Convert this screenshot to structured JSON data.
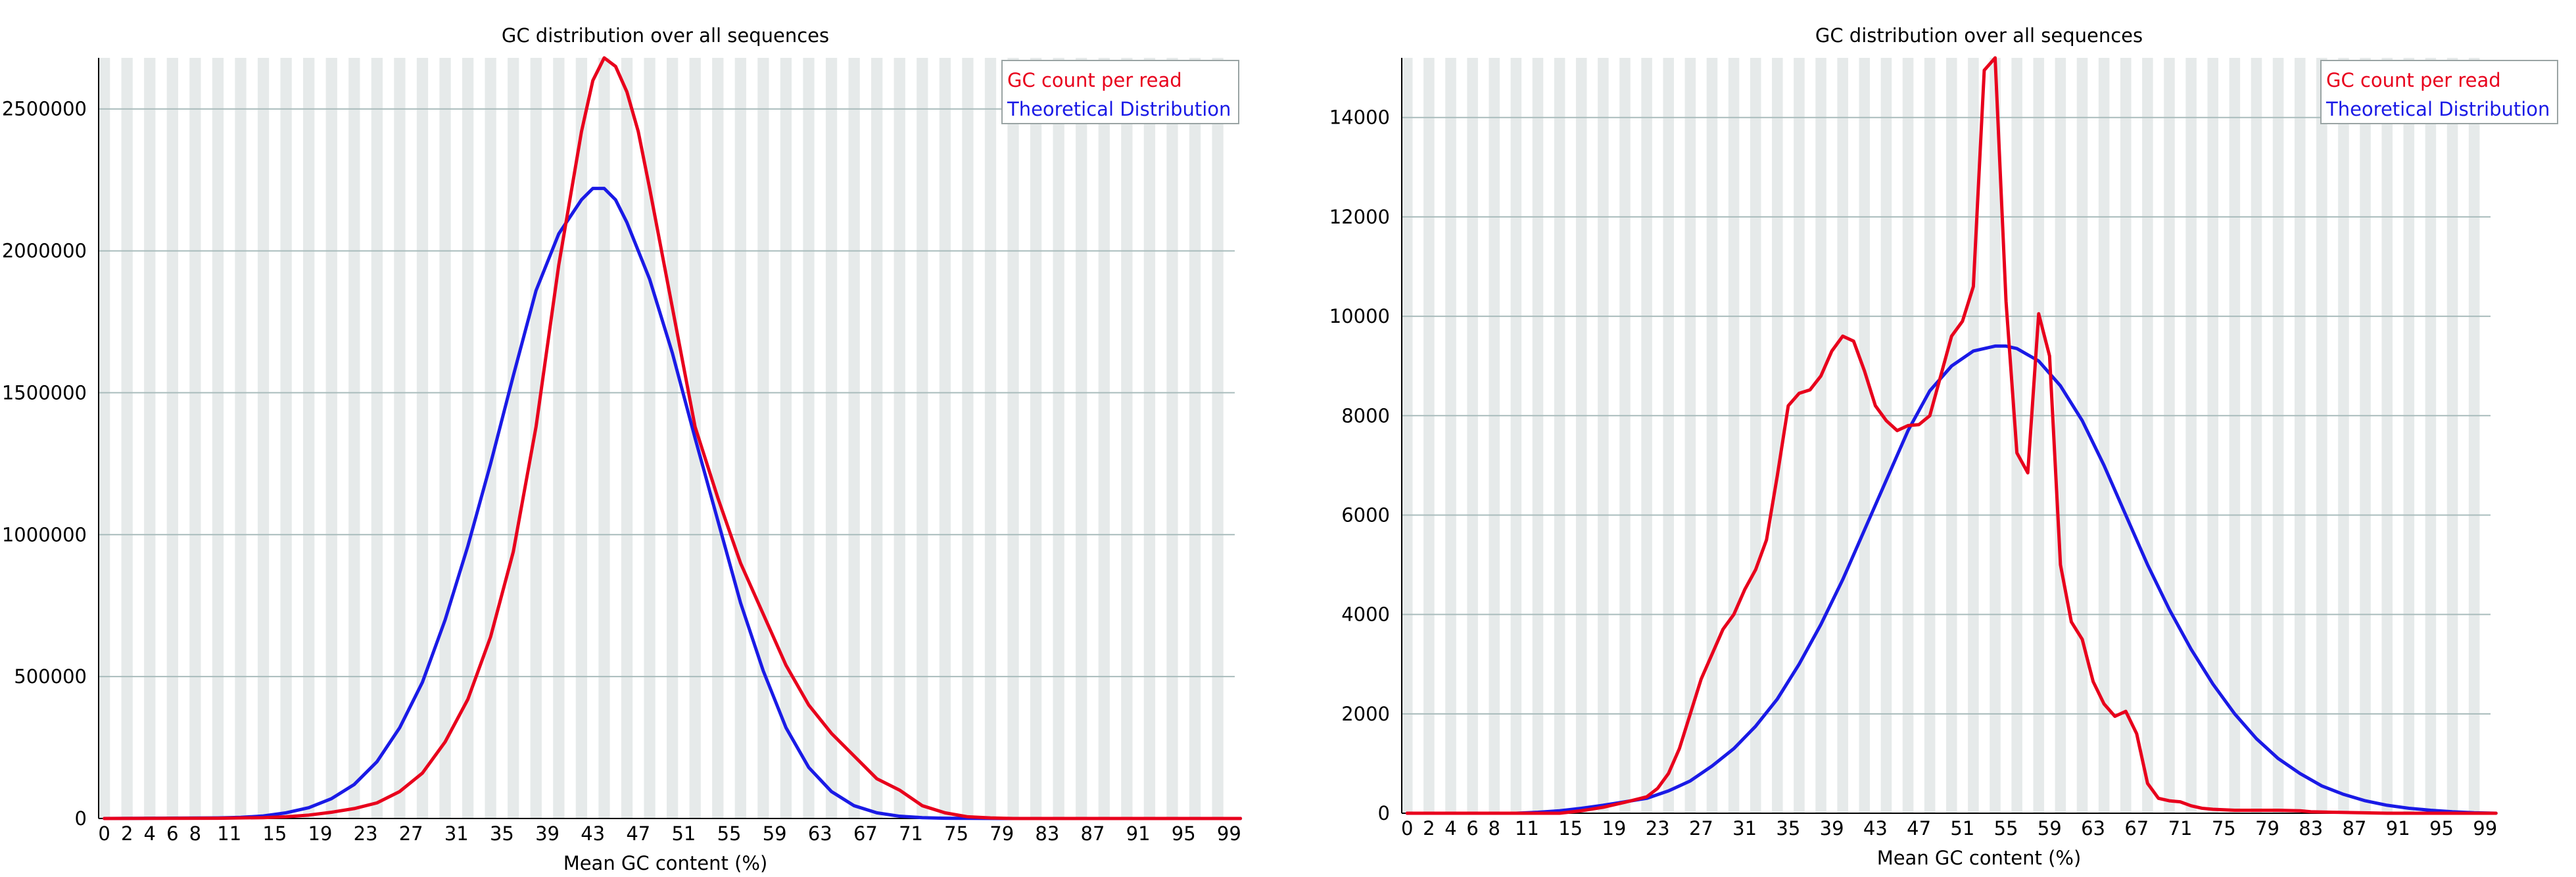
{
  "chart_data": [
    {
      "type": "line",
      "title": "GC distribution over all sequences",
      "xlabel": "Mean GC content (%)",
      "ylabel": "",
      "xlim": [
        0,
        100
      ],
      "ylim": [
        0,
        2680000
      ],
      "grid": true,
      "legend": "top-right",
      "x_ticks": [
        "0",
        "2",
        "4",
        "6",
        "8",
        "11",
        "15",
        "19",
        "23",
        "27",
        "31",
        "35",
        "39",
        "43",
        "47",
        "51",
        "55",
        "59",
        "63",
        "67",
        "71",
        "75",
        "79",
        "83",
        "87",
        "91",
        "95",
        "99"
      ],
      "y_ticks": [
        "0",
        "500000",
        "1000000",
        "1500000",
        "2000000",
        "2500000"
      ],
      "series": [
        {
          "name": "GC count per read",
          "color": "#e8001c",
          "x": [
            0,
            10,
            14,
            16,
            18,
            20,
            22,
            24,
            26,
            28,
            30,
            32,
            34,
            36,
            38,
            40,
            42,
            43,
            44,
            45,
            46,
            47,
            48,
            50,
            52,
            54,
            56,
            58,
            60,
            62,
            64,
            66,
            68,
            70,
            72,
            74,
            76,
            78,
            80,
            90,
            100
          ],
          "y": [
            0,
            1000,
            3000,
            6000,
            12000,
            22000,
            35000,
            55000,
            95000,
            160000,
            270000,
            420000,
            640000,
            940000,
            1380000,
            1950000,
            2420000,
            2600000,
            2680000,
            2650000,
            2560000,
            2420000,
            2220000,
            1800000,
            1380000,
            1130000,
            900000,
            720000,
            540000,
            400000,
            300000,
            220000,
            140000,
            100000,
            45000,
            20000,
            6000,
            2000,
            0,
            0,
            0
          ]
        },
        {
          "name": "Theoretical Distribution",
          "color": "#1a1ae6",
          "x": [
            0,
            10,
            12,
            14,
            16,
            18,
            20,
            22,
            24,
            26,
            28,
            30,
            32,
            34,
            36,
            38,
            40,
            42,
            43,
            44,
            45,
            46,
            48,
            50,
            52,
            54,
            56,
            58,
            60,
            62,
            64,
            66,
            68,
            70,
            72,
            74,
            76,
            80,
            90,
            100
          ],
          "y": [
            0,
            2000,
            4000,
            9000,
            20000,
            38000,
            70000,
            120000,
            200000,
            320000,
            480000,
            700000,
            960000,
            1250000,
            1560000,
            1860000,
            2060000,
            2180000,
            2220000,
            2220000,
            2180000,
            2100000,
            1900000,
            1640000,
            1340000,
            1050000,
            760000,
            520000,
            320000,
            180000,
            95000,
            45000,
            20000,
            8000,
            3000,
            1000,
            500,
            0,
            0,
            0
          ]
        }
      ]
    },
    {
      "type": "line",
      "title": "GC distribution over all sequences",
      "xlabel": "Mean GC content (%)",
      "ylabel": "",
      "xlim": [
        0,
        100
      ],
      "ylim": [
        0,
        15200
      ],
      "grid": true,
      "legend": "top-right",
      "x_ticks": [
        "0",
        "2",
        "4",
        "6",
        "8",
        "11",
        "15",
        "19",
        "23",
        "27",
        "31",
        "35",
        "39",
        "43",
        "47",
        "51",
        "55",
        "59",
        "63",
        "67",
        "71",
        "75",
        "79",
        "83",
        "87",
        "91",
        "95",
        "99"
      ],
      "y_ticks": [
        "0",
        "2000",
        "4000",
        "6000",
        "8000",
        "10000",
        "12000",
        "14000"
      ],
      "series": [
        {
          "name": "GC count per read",
          "color": "#e8001c",
          "x": [
            0,
            14,
            16,
            18,
            20,
            22,
            23,
            24,
            25,
            26,
            27,
            28,
            29,
            30,
            31,
            32,
            33,
            34,
            35,
            36,
            37,
            38,
            39,
            40,
            41,
            42,
            43,
            44,
            45,
            46,
            47,
            48,
            49,
            50,
            51,
            52,
            53,
            54,
            55,
            56,
            57,
            58,
            59,
            60,
            61,
            62,
            63,
            64,
            65,
            66,
            67,
            68,
            69,
            70,
            71,
            72,
            73,
            74,
            75,
            76,
            80,
            82,
            83,
            85,
            90,
            100
          ],
          "y": [
            0,
            0,
            50,
            120,
            220,
            330,
            500,
            800,
            1300,
            2000,
            2700,
            3200,
            3700,
            4000,
            4500,
            4900,
            5500,
            6800,
            8200,
            8450,
            8520,
            8800,
            9300,
            9600,
            9500,
            8900,
            8200,
            7900,
            7700,
            7800,
            7820,
            8000,
            8800,
            9600,
            9900,
            10600,
            14950,
            15200,
            10300,
            7250,
            6850,
            10050,
            9200,
            5000,
            3850,
            3500,
            2650,
            2200,
            1950,
            2050,
            1600,
            600,
            300,
            250,
            230,
            150,
            100,
            80,
            70,
            60,
            60,
            50,
            30,
            20,
            0,
            0
          ]
        },
        {
          "name": "Theoretical Distribution",
          "color": "#1a1ae6",
          "x": [
            0,
            10,
            12,
            14,
            16,
            18,
            20,
            22,
            24,
            26,
            28,
            30,
            32,
            34,
            36,
            38,
            40,
            42,
            44,
            46,
            48,
            50,
            52,
            54,
            55,
            56,
            58,
            60,
            62,
            64,
            66,
            68,
            70,
            72,
            74,
            76,
            78,
            80,
            82,
            84,
            86,
            88,
            90,
            92,
            94,
            96,
            98,
            100
          ],
          "y": [
            0,
            0,
            20,
            50,
            100,
            160,
            230,
            300,
            450,
            650,
            950,
            1300,
            1750,
            2300,
            3000,
            3800,
            4700,
            5700,
            6700,
            7700,
            8500,
            9000,
            9300,
            9400,
            9400,
            9350,
            9100,
            8600,
            7900,
            7000,
            6000,
            5000,
            4100,
            3300,
            2600,
            2000,
            1500,
            1100,
            800,
            550,
            380,
            250,
            160,
            100,
            60,
            30,
            10,
            0
          ]
        }
      ]
    }
  ]
}
